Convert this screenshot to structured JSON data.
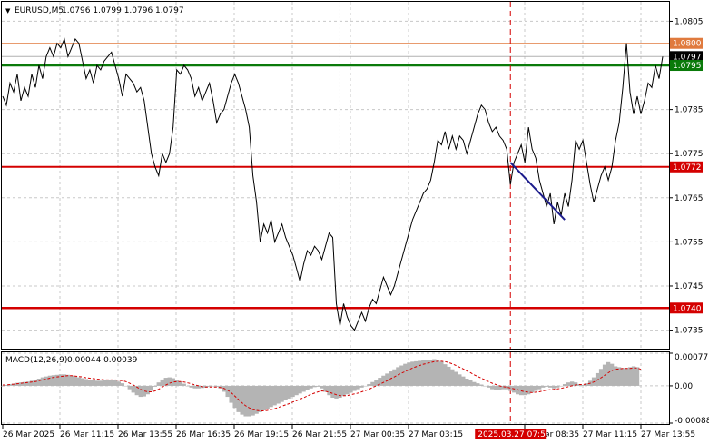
{
  "header": {
    "arrow": "▼",
    "symbol": "EURUSD,M5",
    "ohlc": "1.0796 1.0799 1.0796 1.0797"
  },
  "macd_label": {
    "name": "MACD(12,26,9)",
    "values": "0.00044 0.00039"
  },
  "colors": {
    "price_line": "#000000",
    "grid": "#c8c8c8",
    "resistance_orange": "#e07a3e",
    "green_level": "#0a7a0a",
    "red_level": "#d40000",
    "trend_line": "#1c1c8c",
    "macd_hist": "#b4b4b4",
    "macd_signal": "#d40000",
    "current_price_tag": "#000000"
  },
  "chart_data": [
    {
      "type": "line",
      "title": "EURUSD,M5",
      "y_axis_ticks": [
        "1.0805",
        "1.0795",
        "1.0785",
        "1.0775",
        "1.0765",
        "1.0755",
        "1.0745",
        "1.0735"
      ],
      "ylim": [
        1.0731,
        1.0809
      ],
      "x_axis_ticks": [
        "26 Mar 2025",
        "26 Mar 11:15",
        "26 Mar 13:55",
        "26 Mar 16:35",
        "26 Mar 19:15",
        "26 Mar 21:55",
        "27 Mar 00:35",
        "27 Mar 03:15",
        "27 Mar 08:35",
        "27 Mar 11:15",
        "27 Mar 13:55"
      ],
      "highlighted_time": "2025.03.27 07:50",
      "levels": [
        {
          "price": 1.08,
          "label": "1.0800",
          "color": "#e07a3e",
          "style": "thin"
        },
        {
          "price": 1.0797,
          "label": "1.0797",
          "color": "#000000",
          "style": "current"
        },
        {
          "price": 1.0795,
          "label": "1.0795",
          "color": "#0a7a0a",
          "style": "thick"
        },
        {
          "price": 1.0772,
          "label": "1.0772",
          "color": "#d40000",
          "style": "medium"
        },
        {
          "price": 1.074,
          "label": "1.0740",
          "color": "#d40000",
          "style": "thick"
        }
      ],
      "vertical_markers": [
        {
          "time_index": 93,
          "style": "dotted",
          "color": "#000000"
        },
        {
          "time_index": 140,
          "style": "dashed",
          "color": "#d40000"
        }
      ],
      "trend_line": {
        "from": {
          "i": 140,
          "price": 1.0773
        },
        "to": {
          "i": 155,
          "price": 1.076
        },
        "color": "#1c1c8c"
      },
      "series": [
        {
          "values": [
            1.0788,
            1.0786,
            1.0791,
            1.0789,
            1.0793,
            1.0787,
            1.079,
            1.0788,
            1.0793,
            1.079,
            1.0795,
            1.0792,
            1.0797,
            1.0799,
            1.0797,
            1.08,
            1.0799,
            1.0801,
            1.0797,
            1.0799,
            1.0801,
            1.08,
            1.0796,
            1.0792,
            1.0794,
            1.0791,
            1.0795,
            1.0794,
            1.0796,
            1.0797,
            1.0798,
            1.0795,
            1.0792,
            1.0788,
            1.0793,
            1.0792,
            1.0791,
            1.0789,
            1.079,
            1.0787,
            1.0781,
            1.0775,
            1.0772,
            1.077,
            1.0775,
            1.0773,
            1.0775,
            1.0781,
            1.0794,
            1.0793,
            1.0795,
            1.0794,
            1.0792,
            1.0788,
            1.079,
            1.0787,
            1.0789,
            1.0791,
            1.0787,
            1.0782,
            1.0784,
            1.0785,
            1.0788,
            1.0791,
            1.0793,
            1.0791,
            1.0788,
            1.0785,
            1.0781,
            1.077,
            1.0764,
            1.0755,
            1.0759,
            1.0757,
            1.076,
            1.0755,
            1.0757,
            1.0759,
            1.0756,
            1.0754,
            1.0752,
            1.0749,
            1.0746,
            1.075,
            1.0753,
            1.0752,
            1.0754,
            1.0753,
            1.0751,
            1.0754,
            1.0757,
            1.0756,
            1.0741,
            1.0736,
            1.0741,
            1.0738,
            1.0736,
            1.0735,
            1.0737,
            1.0739,
            1.0737,
            1.074,
            1.0742,
            1.0741,
            1.0744,
            1.0747,
            1.0745,
            1.0743,
            1.0745,
            1.0748,
            1.0751,
            1.0754,
            1.0757,
            1.076,
            1.0762,
            1.0764,
            1.0766,
            1.0767,
            1.0769,
            1.0773,
            1.0778,
            1.0777,
            1.078,
            1.0776,
            1.0779,
            1.0776,
            1.0779,
            1.0778,
            1.0775,
            1.0778,
            1.0781,
            1.0784,
            1.0786,
            1.0785,
            1.0782,
            1.078,
            1.0781,
            1.0779,
            1.0778,
            1.0776,
            1.0768,
            1.0773,
            1.0775,
            1.0777,
            1.0773,
            1.0781,
            1.0776,
            1.0774,
            1.0769,
            1.0766,
            1.0763,
            1.0766,
            1.0759,
            1.0764,
            1.0761,
            1.0766,
            1.0763,
            1.0769,
            1.0778,
            1.0776,
            1.0778,
            1.0773,
            1.0768,
            1.0764,
            1.0767,
            1.077,
            1.0772,
            1.0769,
            1.0772,
            1.0778,
            1.0782,
            1.079,
            1.08,
            1.0789,
            1.0784,
            1.0788,
            1.0784,
            1.0787,
            1.0791,
            1.079,
            1.0795,
            1.0792,
            1.0797
          ]
        }
      ]
    },
    {
      "type": "bar",
      "title": "MACD(12,26,9)",
      "y_axis_ticks": [
        "0.00077",
        "0.00",
        "-0.00088"
      ],
      "ylim": [
        -0.00088,
        0.00077
      ],
      "series": [
        {
          "name": "MACD",
          "values": [
            0.0,
            2e-05,
            4e-05,
            5e-05,
            7e-05,
            8e-05,
            9e-05,
            0.0001,
            0.00012,
            0.00014,
            0.00017,
            0.0002,
            0.00022,
            0.00024,
            0.00025,
            0.00026,
            0.00027,
            0.00027,
            0.00026,
            0.00024,
            0.00022,
            0.0002,
            0.00018,
            0.00016,
            0.00014,
            0.00013,
            0.00012,
            0.00012,
            0.00013,
            0.00014,
            0.00014,
            0.00013,
            0.0001,
            6e-05,
            0.0,
            -8e-05,
            -0.00016,
            -0.00022,
            -0.00026,
            -0.00025,
            -0.0002,
            -0.00012,
            -2e-05,
            8e-05,
            0.00015,
            0.00019,
            0.0002,
            0.00018,
            0.00014,
            0.0001,
            5e-05,
            0.0,
            -4e-05,
            -6e-05,
            -6e-05,
            -5e-05,
            -4e-05,
            -2e-05,
            -1e-05,
            -2e-05,
            -6e-05,
            -0.00014,
            -0.00026,
            -0.0004,
            -0.00052,
            -0.00062,
            -0.00068,
            -0.00072,
            -0.00072,
            -0.0007,
            -0.00066,
            -0.00062,
            -0.00058,
            -0.00054,
            -0.0005,
            -0.00046,
            -0.00042,
            -0.00038,
            -0.00034,
            -0.0003,
            -0.00026,
            -0.00022,
            -0.00018,
            -0.00014,
            -0.0001,
            -6e-05,
            -3e-05,
            -2e-05,
            -6e-05,
            -0.00014,
            -0.00022,
            -0.00028,
            -0.0003,
            -0.00028,
            -0.00024,
            -0.0002,
            -0.00016,
            -0.00012,
            -8e-05,
            -4e-05,
            0.0,
            4e-05,
            9e-05,
            0.00014,
            0.00019,
            0.00024,
            0.00029,
            0.00034,
            0.00039,
            0.00044,
            0.00048,
            0.00052,
            0.00055,
            0.00057,
            0.00058,
            0.00059,
            0.0006,
            0.00061,
            0.00062,
            0.00063,
            0.00061,
            0.00057,
            0.00051,
            0.00045,
            0.00039,
            0.00033,
            0.00027,
            0.00022,
            0.00017,
            0.00013,
            9e-05,
            6e-05,
            3e-05,
            0.0,
            -4e-05,
            -8e-05,
            -0.0001,
            -0.0001,
            -8e-05,
            -8e-05,
            -0.00012,
            -0.00016,
            -0.0002,
            -0.00022,
            -0.00022,
            -0.0002,
            -0.00016,
            -0.00012,
            -8e-05,
            -4e-05,
            -2e-05,
            -4e-05,
            -6e-05,
            -4e-05,
            0.0,
            4e-05,
            8e-05,
            0.0001,
            8e-05,
            4e-05,
            2e-05,
            6e-05,
            0.00012,
            0.0002,
            0.0003,
            0.0004,
            0.0005,
            0.00056,
            0.00052,
            0.00046,
            0.00044,
            0.00042,
            0.00042,
            0.00044,
            0.00046,
            0.00044
          ]
        },
        {
          "name": "Signal",
          "values": [
            2e-05,
            2e-05,
            3e-05,
            4e-05,
            5e-05,
            6e-05,
            7e-05,
            8e-05,
            9e-05,
            0.0001,
            0.00012,
            0.00014,
            0.00016,
            0.00018,
            0.0002,
            0.00021,
            0.00022,
            0.00023,
            0.00024,
            0.00024,
            0.00023,
            0.00022,
            0.00021,
            0.00019,
            0.00018,
            0.00017,
            0.00016,
            0.00015,
            0.00014,
            0.00014,
            0.00014,
            0.00014,
            0.00013,
            0.00012,
            0.0001,
            6e-05,
            2e-05,
            -3e-05,
            -8e-05,
            -0.00012,
            -0.00014,
            -0.00014,
            -0.00012,
            -8e-05,
            -3e-05,
            2e-05,
            6e-05,
            9e-05,
            0.0001,
            0.0001,
            9e-05,
            7e-05,
            5e-05,
            2e-05,
            0.0,
            -2e-05,
            -3e-05,
            -3e-05,
            -3e-05,
            -3e-05,
            -4e-05,
            -6e-05,
            -0.0001,
            -0.00016,
            -0.00024,
            -0.00032,
            -0.0004,
            -0.00047,
            -0.00052,
            -0.00056,
            -0.00058,
            -0.00059,
            -0.00059,
            -0.00058,
            -0.00056,
            -0.00054,
            -0.00051,
            -0.00048,
            -0.00045,
            -0.00042,
            -0.00038,
            -0.00035,
            -0.00031,
            -0.00028,
            -0.00024,
            -0.0002,
            -0.00017,
            -0.00014,
            -0.00012,
            -0.00013,
            -0.00015,
            -0.00018,
            -0.00021,
            -0.00023,
            -0.00023,
            -0.00023,
            -0.00021,
            -0.00019,
            -0.00017,
            -0.00014,
            -0.00011,
            -8e-05,
            -4e-05,
            0.0,
            4e-05,
            8e-05,
            0.00012,
            0.00017,
            0.00021,
            0.00026,
            0.0003,
            0.00034,
            0.00038,
            0.00042,
            0.00045,
            0.00048,
            0.00051,
            0.00053,
            0.00055,
            0.00057,
            0.00058,
            0.00058,
            0.00057,
            0.00055,
            0.00052,
            0.00048,
            0.00044,
            0.0004,
            0.00035,
            0.00031,
            0.00026,
            0.00022,
            0.00018,
            0.00014,
            0.0001,
            6e-05,
            3e-05,
            0.0,
            -2e-05,
            -3e-05,
            -5e-05,
            -7e-05,
            -9e-05,
            -0.00012,
            -0.00014,
            -0.00015,
            -0.00016,
            -0.00015,
            -0.00014,
            -0.00012,
            -0.0001,
            -9e-05,
            -8e-05,
            -7e-05,
            -6e-05,
            -4e-05,
            -2e-05,
            0.0,
            2e-05,
            3e-05,
            3e-05,
            4e-05,
            6e-05,
            9e-05,
            0.00014,
            0.00019,
            0.00025,
            0.00031,
            0.00036,
            0.00039,
            0.0004,
            0.00041,
            0.00041,
            0.00041,
            0.00042,
            0.00042,
            0.00039
          ]
        }
      ]
    }
  ]
}
